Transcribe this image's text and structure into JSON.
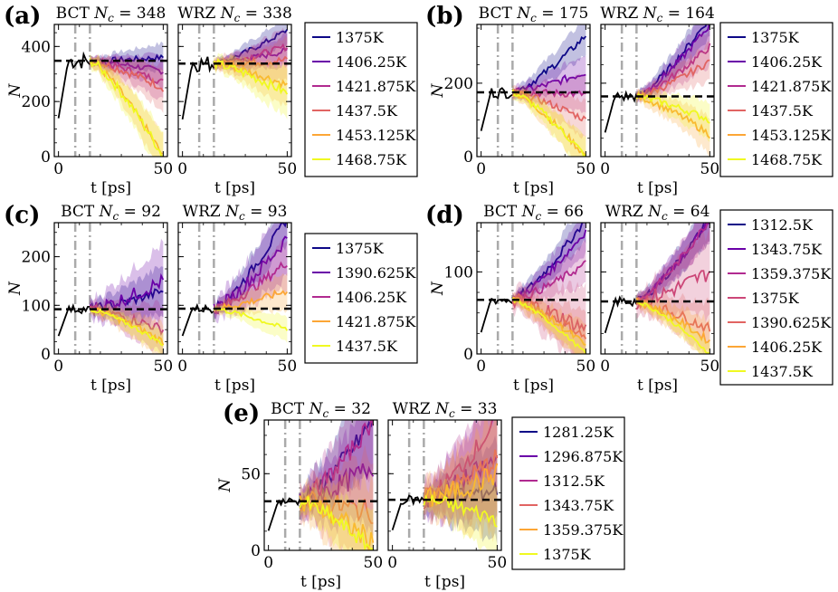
{
  "figure": {
    "x_label": "t [ps]",
    "y_label": "N",
    "x_ticks": [
      0,
      50
    ]
  },
  "chart_data": [
    {
      "panel": "(a)",
      "type": "line",
      "structures": [
        {
          "name": "BCT",
          "nc": 348
        },
        {
          "name": "WRZ",
          "nc": 338
        }
      ],
      "xlim": [
        -2,
        52
      ],
      "ylim": [
        0,
        480
      ],
      "y_ticks": [
        0,
        200,
        400
      ],
      "vlines": [
        8,
        15
      ],
      "series": [
        {
          "label": "1375K",
          "color": "#0d0887",
          "bct_end": 360,
          "wrz_end": 460,
          "spread": 40
        },
        {
          "label": "1406.25K",
          "color": "#6a00a8",
          "bct_end": 310,
          "wrz_end": 385,
          "spread": 45
        },
        {
          "label": "1421.875K",
          "color": "#b12a90",
          "bct_end": 270,
          "wrz_end": 400,
          "spread": 50
        },
        {
          "label": "1437.5K",
          "color": "#e16462",
          "bct_end": 250,
          "wrz_end": 350,
          "spread": 60
        },
        {
          "label": "1453.125K",
          "color": "#fca636",
          "bct_end": 0,
          "wrz_end": 260,
          "spread": 60
        },
        {
          "label": "1468.75K",
          "color": "#f0f921",
          "bct_end": 0,
          "wrz_end": 230,
          "spread": 70
        }
      ]
    },
    {
      "panel": "(b)",
      "type": "line",
      "structures": [
        {
          "name": "BCT",
          "nc": 175
        },
        {
          "name": "WRZ",
          "nc": 164
        }
      ],
      "xlim": [
        -2,
        52
      ],
      "ylim": [
        0,
        360
      ],
      "y_ticks": [
        0,
        200
      ],
      "vlines": [
        8,
        15
      ],
      "series": [
        {
          "label": "1375K",
          "color": "#0d0887",
          "bct_end": 330,
          "wrz_end": 380,
          "spread": 40
        },
        {
          "label": "1406.25K",
          "color": "#6a00a8",
          "bct_end": 230,
          "wrz_end": 360,
          "spread": 40
        },
        {
          "label": "1421.875K",
          "color": "#b12a90",
          "bct_end": 170,
          "wrz_end": 300,
          "spread": 40
        },
        {
          "label": "1437.5K",
          "color": "#e16462",
          "bct_end": 100,
          "wrz_end": 260,
          "spread": 40
        },
        {
          "label": "1453.125K",
          "color": "#fca636",
          "bct_end": 0,
          "wrz_end": 60,
          "spread": 40
        },
        {
          "label": "1468.75K",
          "color": "#f0f921",
          "bct_end": 0,
          "wrz_end": 100,
          "spread": 40
        }
      ]
    },
    {
      "panel": "(c)",
      "type": "line",
      "structures": [
        {
          "name": "BCT",
          "nc": 92
        },
        {
          "name": "WRZ",
          "nc": 93
        }
      ],
      "xlim": [
        -2,
        52
      ],
      "ylim": [
        0,
        270
      ],
      "y_ticks": [
        0,
        100,
        200
      ],
      "vlines": [
        8,
        15
      ],
      "series": [
        {
          "label": "1375K",
          "color": "#0d0887",
          "bct_end": 130,
          "wrz_end": 280,
          "spread": 40
        },
        {
          "label": "1390.625K",
          "color": "#6a00a8",
          "bct_end": 150,
          "wrz_end": 240,
          "spread": 60
        },
        {
          "label": "1406.25K",
          "color": "#b12a90",
          "bct_end": 50,
          "wrz_end": 190,
          "spread": 40
        },
        {
          "label": "1421.875K",
          "color": "#fca636",
          "bct_end": 25,
          "wrz_end": 130,
          "spread": 30
        },
        {
          "label": "1437.5K",
          "color": "#f0f921",
          "bct_end": 20,
          "wrz_end": 50,
          "spread": 20
        }
      ]
    },
    {
      "panel": "(d)",
      "type": "line",
      "structures": [
        {
          "name": "BCT",
          "nc": 66
        },
        {
          "name": "WRZ",
          "nc": 64
        }
      ],
      "xlim": [
        -2,
        52
      ],
      "ylim": [
        0,
        160
      ],
      "y_ticks": [
        0,
        100
      ],
      "vlines": [
        8,
        15
      ],
      "series": [
        {
          "label": "1312.5K",
          "color": "#0d0887",
          "bct_end": 165,
          "wrz_end": 165,
          "spread": 20
        },
        {
          "label": "1343.75K",
          "color": "#6a00a8",
          "bct_end": 150,
          "wrz_end": 165,
          "spread": 20
        },
        {
          "label": "1359.375K",
          "color": "#b12a90",
          "bct_end": 110,
          "wrz_end": 165,
          "spread": 20
        },
        {
          "label": "1375K",
          "color": "#cc4778",
          "bct_end": 30,
          "wrz_end": 100,
          "spread": 40
        },
        {
          "label": "1390.625K",
          "color": "#e16462",
          "bct_end": 20,
          "wrz_end": 30,
          "spread": 25
        },
        {
          "label": "1406.25K",
          "color": "#fca636",
          "bct_end": 10,
          "wrz_end": 15,
          "spread": 20
        },
        {
          "label": "1437.5K",
          "color": "#f0f921",
          "bct_end": 0,
          "wrz_end": 0,
          "spread": 10
        }
      ]
    },
    {
      "panel": "(e)",
      "type": "line",
      "structures": [
        {
          "name": "BCT",
          "nc": 32
        },
        {
          "name": "WRZ",
          "nc": 33
        }
      ],
      "xlim": [
        -2,
        52
      ],
      "ylim": [
        0,
        85
      ],
      "y_ticks": [
        0,
        50
      ],
      "vlines": [
        8,
        15
      ],
      "series": [
        {
          "label": "1281.25K",
          "color": "#0d0887",
          "bct_end": 85,
          "wrz_end": 40,
          "spread": 25
        },
        {
          "label": "1296.875K",
          "color": "#6a00a8",
          "bct_end": 55,
          "wrz_end": 60,
          "spread": 30
        },
        {
          "label": "1312.5K",
          "color": "#b12a90",
          "bct_end": 85,
          "wrz_end": 85,
          "spread": 25
        },
        {
          "label": "1343.75K",
          "color": "#e16462",
          "bct_end": 25,
          "wrz_end": 60,
          "spread": 30
        },
        {
          "label": "1359.375K",
          "color": "#fca636",
          "bct_end": 5,
          "wrz_end": 50,
          "spread": 30
        },
        {
          "label": "1375K",
          "color": "#f0f921",
          "bct_end": 0,
          "wrz_end": 20,
          "spread": 20
        }
      ]
    }
  ]
}
